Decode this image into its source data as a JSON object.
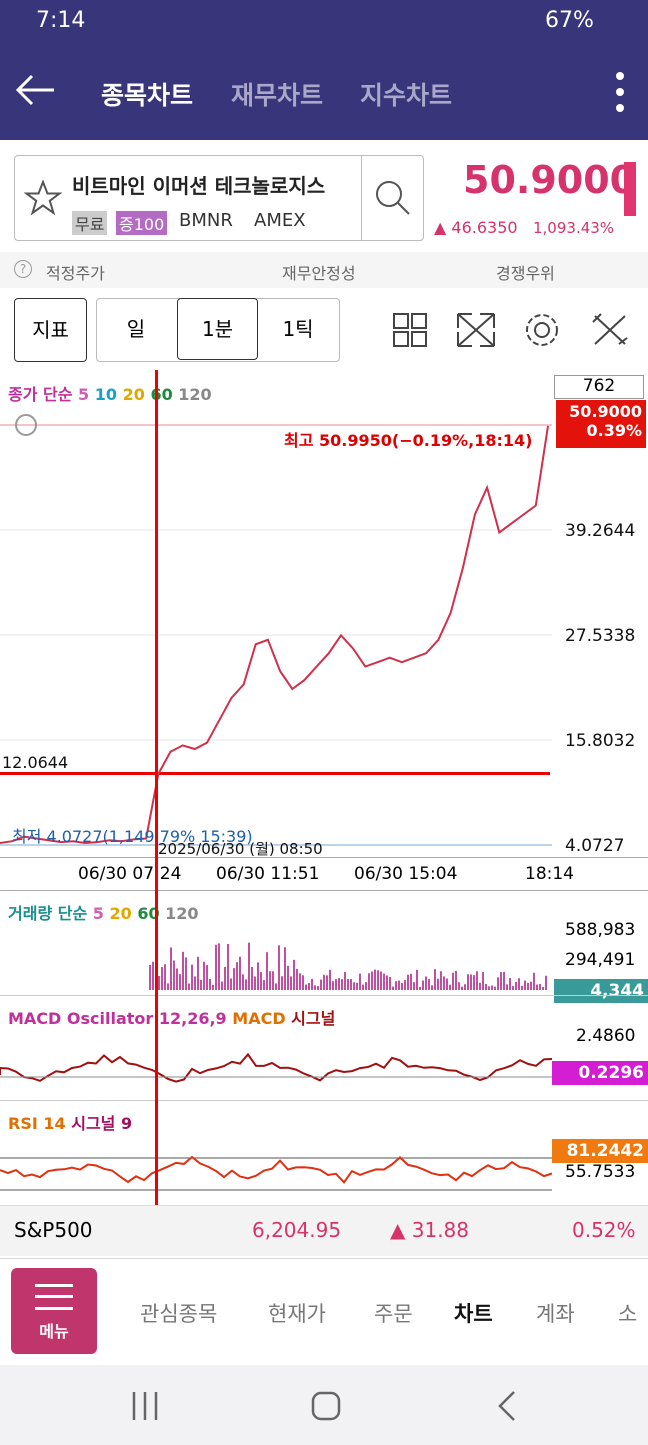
{
  "status_bar": {
    "time": "7:14",
    "battery": "67%"
  },
  "header": {
    "tabs": [
      "종목차트",
      "재무차트",
      "지수차트"
    ]
  },
  "stock": {
    "name": "비트마인 이머션 테크놀로지스",
    "tags": [
      "무료",
      "증100"
    ],
    "ticker": "BMNR",
    "exchange": "AMEX",
    "price": "50.9000",
    "change": "▲ 46.6350",
    "change_pct": "1,093.43%"
  },
  "info_tabs": [
    "적정주가",
    "재무안정성",
    "경쟁우위"
  ],
  "toolbar": {
    "indicator": "지표",
    "periods": [
      "일",
      "1분",
      "1틱"
    ]
  },
  "price_chart": {
    "legend": {
      "label": "종가 단순",
      "periods": [
        "5",
        "10",
        "20",
        "60",
        "120"
      ]
    },
    "count_label": "762",
    "current_price": "50.9000",
    "current_pct": "0.39%",
    "high_label": "최고 50.9950(−0.19%,18:14)",
    "high": 50.995,
    "low_label": "최저 4.0727(1,149.79% 15:39)",
    "crosshair": {
      "value": 12.0644,
      "label": "12.0644",
      "date": "2025/06/30 (월) 08:50"
    },
    "yticks": [
      4.0727,
      15.8032,
      27.5338,
      39.2644
    ],
    "values": [
      4.3,
      4.5,
      5.0,
      4.8,
      4.6,
      4.4,
      4.5,
      4.3,
      4.4,
      4.6,
      4.5,
      4.7,
      4.8,
      12.0,
      14.5,
      15.2,
      14.8,
      15.5,
      18.0,
      20.5,
      22.0,
      26.5,
      27.0,
      23.5,
      21.5,
      22.5,
      24.0,
      25.5,
      27.5,
      26.0,
      24.0,
      24.5,
      25.0,
      24.5,
      25.0,
      25.5,
      27.0,
      30.0,
      35.0,
      41.0,
      44.0,
      39.0,
      40.0,
      41.0,
      42.0,
      50.9
    ],
    "xlabels": [
      "06/30 07:24",
      "06/30 11:51",
      "06/30 15:04",
      "18:14"
    ]
  },
  "volume": {
    "legend": "거래량 단순",
    "periods": [
      "5",
      "20",
      "60",
      "120"
    ],
    "ticks": [
      "588,983",
      "294,491"
    ],
    "current": "4,344"
  },
  "macd": {
    "legend": "MACD Oscillator 12,26,9",
    "macd": "MACD",
    "signal": "시그널",
    "tick": "2.4860",
    "current": "0.2296"
  },
  "rsi": {
    "legend": "RSI 14",
    "signal": "시그널 9",
    "tick": "55.7533",
    "current": "81.2442"
  },
  "index_bar": {
    "name": "S&P500",
    "value": "6,204.95",
    "change": "▲ 31.88",
    "pct": "0.52%"
  },
  "bottom_nav": {
    "menu": "메뉴",
    "items": [
      "관심종목",
      "현재가",
      "주문",
      "차트",
      "계좌",
      "소"
    ]
  }
}
